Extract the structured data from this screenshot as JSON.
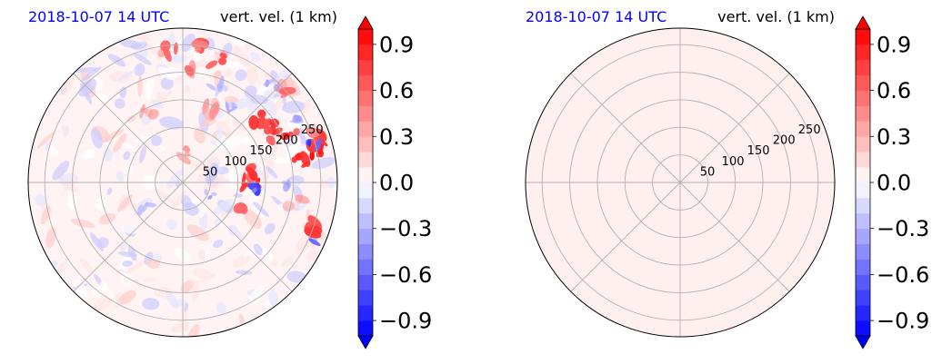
{
  "colors": {
    "background": "#ffffff",
    "date_text": "#0000ff",
    "grid": "#b0b0b0",
    "positive": "#ff0000",
    "negative": "#0000ff",
    "near_zero_fill": "#fff0f0"
  },
  "chart_data": [
    {
      "type": "heatmap",
      "projection": "polar",
      "title_left": "2018-10-07 14 UTC",
      "title_right": "vert. vel. (1 km)",
      "radial_ticks": [
        "50",
        "100",
        "150",
        "200",
        "250"
      ],
      "radial_tick_values": [
        50,
        100,
        150,
        200,
        250
      ],
      "radial_max": 280,
      "angular_gridlines_deg": [
        0,
        45,
        90,
        135,
        180,
        225,
        270,
        315
      ],
      "field": "scattered small-scale cells: strong upward (red, up to ~1.0) clustered to the north-east and east, weak downward (blue, ~-0.3 to -0.9) interspersed; mostly near zero elsewhere",
      "colorbar": {
        "min": -1.0,
        "max": 1.0,
        "extend": "both",
        "ticks": [
          "−0.9",
          "−0.6",
          "−0.3",
          "0.0",
          "0.3",
          "0.6",
          "0.9"
        ],
        "tick_values": [
          -0.9,
          -0.6,
          -0.3,
          0.0,
          0.3,
          0.6,
          0.9
        ],
        "levels": 21
      }
    },
    {
      "type": "heatmap",
      "projection": "polar",
      "title_left": "2018-10-07 14 UTC",
      "title_right": "vert. vel. (1 km)",
      "radial_ticks": [
        "50",
        "100",
        "150",
        "200",
        "250"
      ],
      "radial_tick_values": [
        50,
        100,
        150,
        200,
        250
      ],
      "radial_max": 280,
      "angular_gridlines_deg": [
        0,
        45,
        90,
        135,
        180,
        225,
        270,
        315
      ],
      "field": "uniform, just above zero everywhere",
      "uniform_value": 0.02,
      "colorbar": {
        "min": -1.0,
        "max": 1.0,
        "extend": "both",
        "ticks": [
          "−0.9",
          "−0.6",
          "−0.3",
          "0.0",
          "0.3",
          "0.6",
          "0.9"
        ],
        "tick_values": [
          -0.9,
          -0.6,
          -0.3,
          0.0,
          0.3,
          0.6,
          0.9
        ],
        "levels": 21
      }
    }
  ]
}
